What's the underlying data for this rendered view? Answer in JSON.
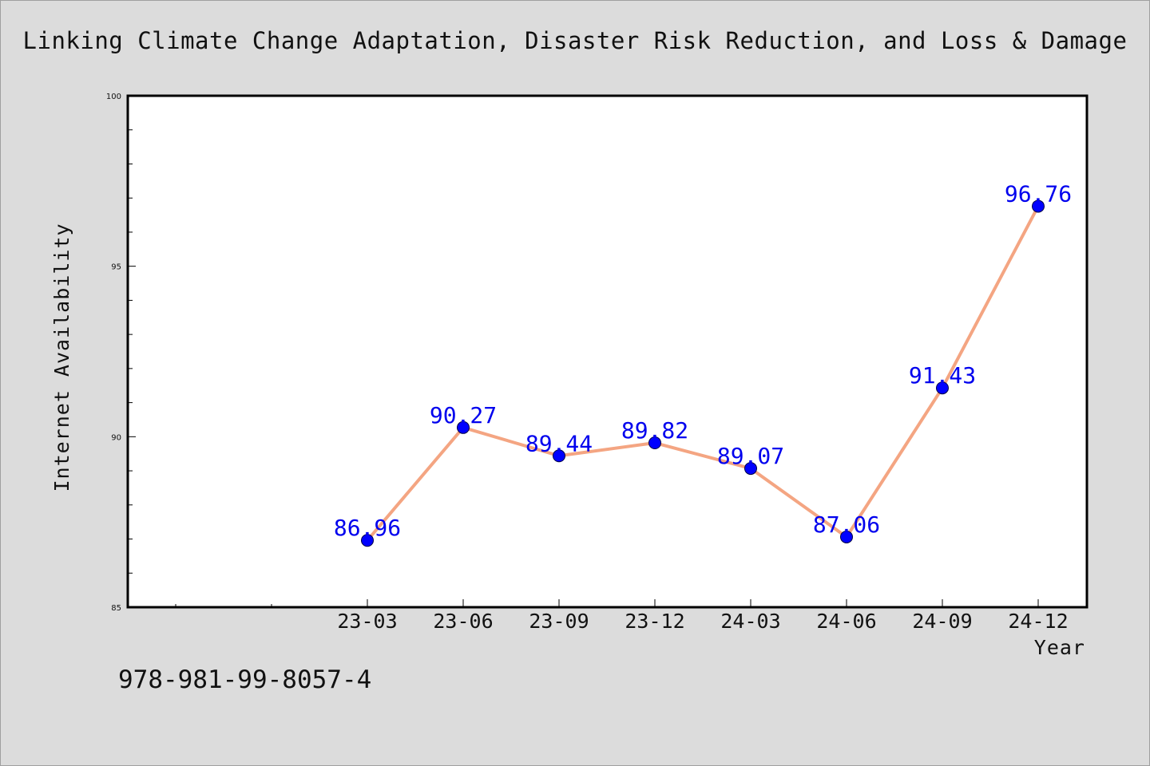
{
  "chart_data": {
    "type": "line",
    "title": "Linking Climate Change Adaptation, Disaster Risk Reduction, and Loss & Damage",
    "xlabel": "Year",
    "ylabel": "Internet Availability",
    "categories": [
      "23-03",
      "23-06",
      "23-09",
      "23-12",
      "24-03",
      "24-06",
      "24-09",
      "24-12"
    ],
    "series": [
      {
        "values": [
          86.96,
          90.27,
          89.44,
          89.82,
          89.07,
          87.06,
          91.43,
          96.76
        ],
        "labels": [
          "86.96",
          "90.27",
          "89.44",
          "89.82",
          "89.07",
          "87.06",
          "91.43",
          "96.76"
        ]
      }
    ],
    "ylim": [
      85,
      100
    ],
    "yticks": [
      "85",
      "90",
      "95",
      "100"
    ],
    "grid": false,
    "legend": "none",
    "colors": {
      "line": "#f4a582",
      "marker": "#0000ff",
      "data_label": "#0000ee",
      "background": "#dcdcdc",
      "plot_background": "#ffffff"
    }
  },
  "footnote": "978-981-99-8057-4"
}
